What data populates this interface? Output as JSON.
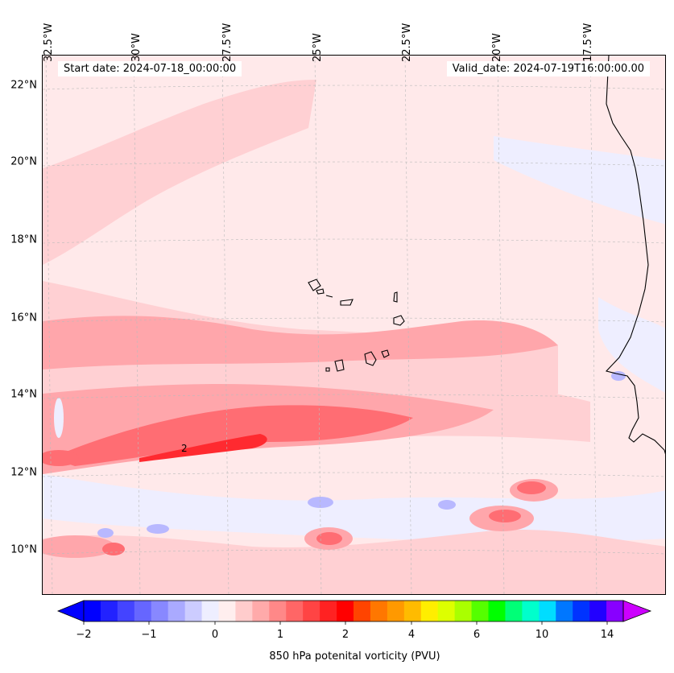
{
  "header": {
    "start_date": "Start date: 2024-07-18_00:00:00",
    "valid_date": "Valid_date: 2024-07-19T16:00:00.00"
  },
  "axes": {
    "lon_labels": [
      "32.5°W",
      "30°W",
      "27.5°W",
      "25°W",
      "22.5°W",
      "20°W",
      "17.5°W"
    ],
    "lat_labels": [
      "22°N",
      "20°N",
      "18°N",
      "16°N",
      "14°N",
      "12°N",
      "10°N"
    ]
  },
  "map": {
    "contour_label": "2",
    "colors": {
      "background": "#ffe9ea",
      "light_red": "#ffd0d3",
      "medium_red": "#ffa6ab",
      "strong_red": "#ff6d73",
      "intense_red": "#ff2a30",
      "light_blue": "#eeeeff",
      "medium_blue": "#b8b8ff",
      "coastline": "#000000"
    }
  },
  "colorbar": {
    "label": "850 hPa potenital vorticity (PVU)",
    "ticks": [
      "−2",
      "−1",
      "0",
      "1",
      "2",
      "4",
      "6",
      "10",
      "14"
    ],
    "colors": [
      "#0000ff",
      "#2222ff",
      "#4444ff",
      "#6666ff",
      "#8888ff",
      "#aaaaff",
      "#ccccff",
      "#eeeeff",
      "#ffeeee",
      "#ffcccc",
      "#ffaaaa",
      "#ff8888",
      "#ff6666",
      "#ff4444",
      "#ff2222",
      "#ff0000",
      "#ff4400",
      "#ff7700",
      "#ff9900",
      "#ffbb00",
      "#ffee00",
      "#ddff00",
      "#aaff00",
      "#55ff00",
      "#00ff00",
      "#00ff77",
      "#00ffcc",
      "#00ddff",
      "#0077ff",
      "#0033ff",
      "#2200ff",
      "#8800ff"
    ]
  }
}
